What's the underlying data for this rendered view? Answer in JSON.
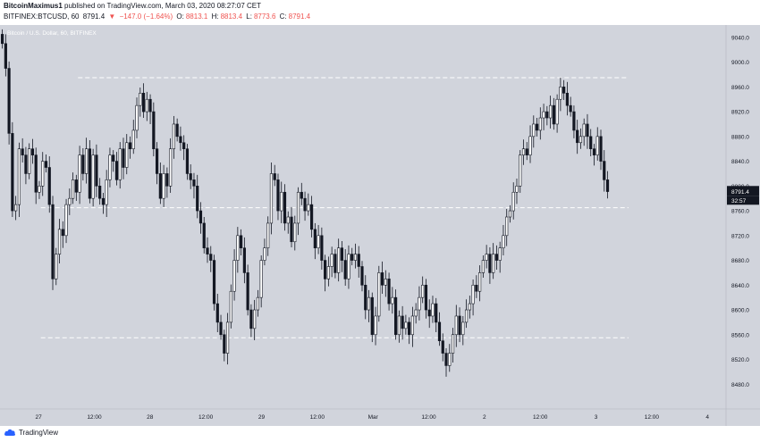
{
  "header": {
    "author": "BitcoinMaximus1",
    "published_text": "published on TradingView.com, March 03, 2020 08:27:07 CET",
    "symbol": "BITFINEX:BTCUSD, 60",
    "last": "8791.4",
    "change": "−147.0 (−1.64%)",
    "open_label": "O:",
    "open": "8813.1",
    "high_label": "H:",
    "high": "8813.4",
    "low_label": "L:",
    "low": "8773.6",
    "close_label": "C:",
    "close": "8791.4"
  },
  "footer": {
    "brand": "TradingView"
  },
  "colors": {
    "background": "#d1d4dc",
    "candle_up": "#ffffff",
    "candle_down": "#131722",
    "wick": "#131722",
    "level_line": "#ffffff",
    "price_tag": "#131722",
    "change_red": "#ef5350"
  },
  "chart_data": {
    "type": "candlestick",
    "title": "Bitcoin / U.S. Dollar, 60, BITFINEX",
    "ylim": [
      8440,
      9060
    ],
    "y_ticks": [
      8480.0,
      8520.0,
      8560.0,
      8600.0,
      8640.0,
      8680.0,
      8720.0,
      8760.0,
      8800.0,
      8840.0,
      8880.0,
      8920.0,
      8960.0,
      9000.0,
      9040.0
    ],
    "x_ticks": [
      {
        "label": "27",
        "hours": 0
      },
      {
        "label": "12:00",
        "hours": 12
      },
      {
        "label": "28",
        "hours": 24
      },
      {
        "label": "12:00",
        "hours": 36
      },
      {
        "label": "29",
        "hours": 48
      },
      {
        "label": "12:00",
        "hours": 60
      },
      {
        "label": "Mar",
        "hours": 72
      },
      {
        "label": "12:00",
        "hours": 84
      },
      {
        "label": "2",
        "hours": 96
      },
      {
        "label": "12:00",
        "hours": 108
      },
      {
        "label": "3",
        "hours": 120
      },
      {
        "label": "12:00",
        "hours": 132
      },
      {
        "label": "4",
        "hours": 144
      }
    ],
    "x_range_hours": [
      -8.3,
      148
    ],
    "last_price_label": "8791.4",
    "countdown_label": "32:57",
    "horizontal_levels": [
      {
        "price": 8975,
        "from_hours": 8.5,
        "to_hours": 127
      },
      {
        "price": 8765,
        "from_hours": 0.5,
        "to_hours": 127
      },
      {
        "price": 8555,
        "from_hours": 0.5,
        "to_hours": 127
      }
    ],
    "candles_close": [
      9030,
      8990,
      8885,
      8760,
      8770,
      8860,
      8850,
      8820,
      8860,
      8850,
      8790,
      8800,
      8840,
      8830,
      8770,
      8650,
      8690,
      8730,
      8720,
      8770,
      8780,
      8810,
      8790,
      8850,
      8820,
      8860,
      8780,
      8850,
      8800,
      8780,
      8770,
      8810,
      8850,
      8840,
      8810,
      8860,
      8830,
      8870,
      8860,
      8890,
      8930,
      8950,
      8920,
      8940,
      8920,
      8860,
      8820,
      8780,
      8820,
      8800,
      8860,
      8900,
      8880,
      8870,
      8860,
      8820,
      8810,
      8800,
      8760,
      8740,
      8700,
      8690,
      8680,
      8610,
      8580,
      8560,
      8530,
      8580,
      8630,
      8680,
      8720,
      8700,
      8660,
      8600,
      8570,
      8600,
      8620,
      8680,
      8700,
      8740,
      8820,
      8810,
      8760,
      8790,
      8740,
      8750,
      8710,
      8740,
      8790,
      8780,
      8760,
      8770,
      8730,
      8700,
      8720,
      8680,
      8650,
      8670,
      8690,
      8660,
      8700,
      8680,
      8650,
      8690,
      8680,
      8690,
      8670,
      8640,
      8600,
      8620,
      8560,
      8590,
      8660,
      8640,
      8650,
      8610,
      8620,
      8560,
      8590,
      8570,
      8580,
      8560,
      8590,
      8600,
      8620,
      8640,
      8600,
      8590,
      8610,
      8580,
      8550,
      8530,
      8510,
      8530,
      8560,
      8590,
      8560,
      8580,
      8600,
      8610,
      8640,
      8630,
      8660,
      8680,
      8690,
      8660,
      8690,
      8680,
      8700,
      8720,
      8750,
      8760,
      8790,
      8800,
      8850,
      8860,
      8850,
      8880,
      8900,
      8890,
      8910,
      8920,
      8910,
      8930,
      8900,
      8940,
      8960,
      8950,
      8930,
      8920,
      8890,
      8870,
      8880,
      8900,
      8880,
      8860,
      8850,
      8880,
      8840,
      8810,
      8791
    ]
  }
}
